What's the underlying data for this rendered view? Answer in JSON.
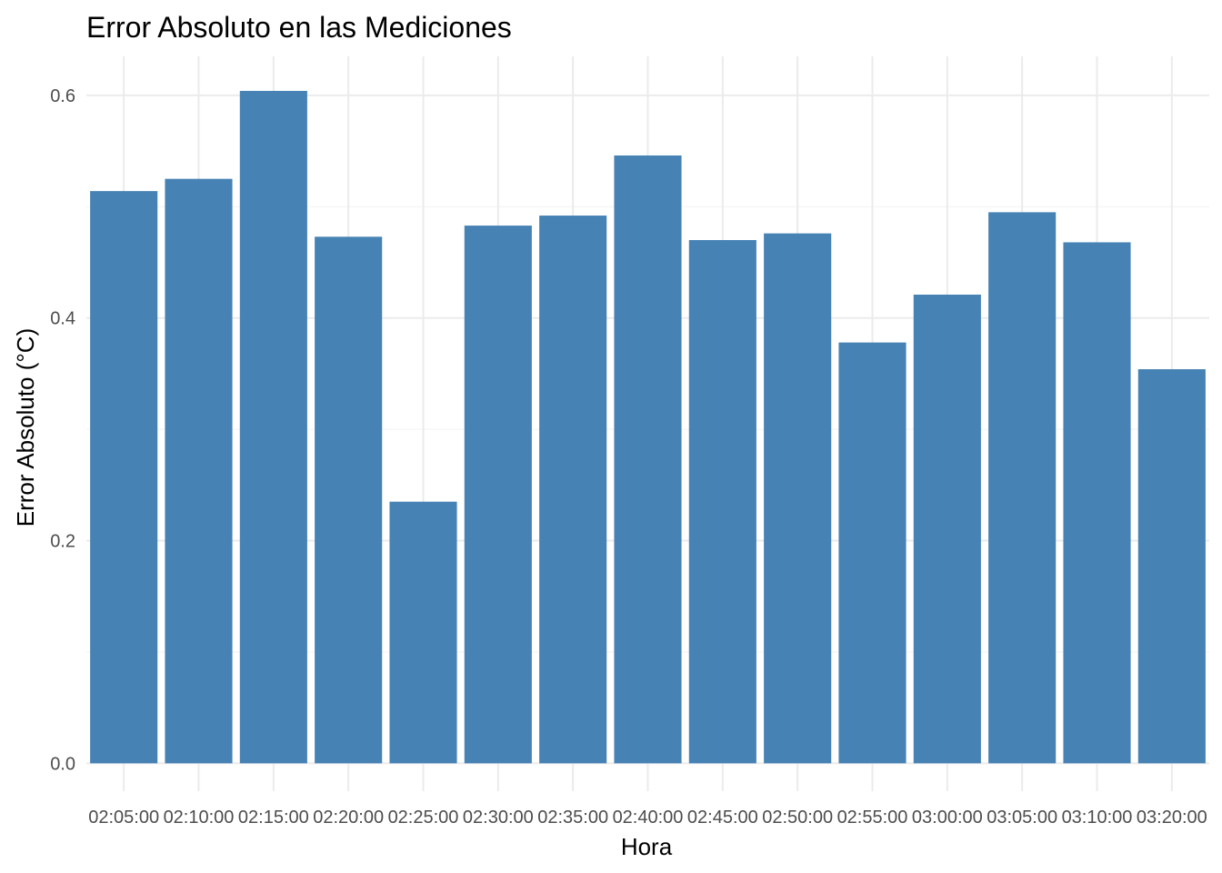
{
  "chart_data": {
    "type": "bar",
    "title": "Error Absoluto en las Mediciones",
    "xlabel": "Hora",
    "ylabel": "Error Absoluto (°C)",
    "categories": [
      "02:05:00",
      "02:10:00",
      "02:15:00",
      "02:20:00",
      "02:25:00",
      "02:30:00",
      "02:35:00",
      "02:40:00",
      "02:45:00",
      "02:50:00",
      "02:55:00",
      "03:00:00",
      "03:05:00",
      "03:10:00",
      "03:20:00"
    ],
    "values": [
      0.514,
      0.525,
      0.604,
      0.473,
      0.235,
      0.483,
      0.492,
      0.546,
      0.47,
      0.476,
      0.378,
      0.421,
      0.495,
      0.468,
      0.354
    ],
    "ylim": [
      -0.025,
      0.635
    ],
    "yticks": [
      "0.0",
      "0.2",
      "0.4",
      "0.6"
    ],
    "ytick_values": [
      0,
      0.2,
      0.4,
      0.6
    ],
    "bar_color": "#4682B4",
    "grid": true,
    "legend": "none"
  }
}
